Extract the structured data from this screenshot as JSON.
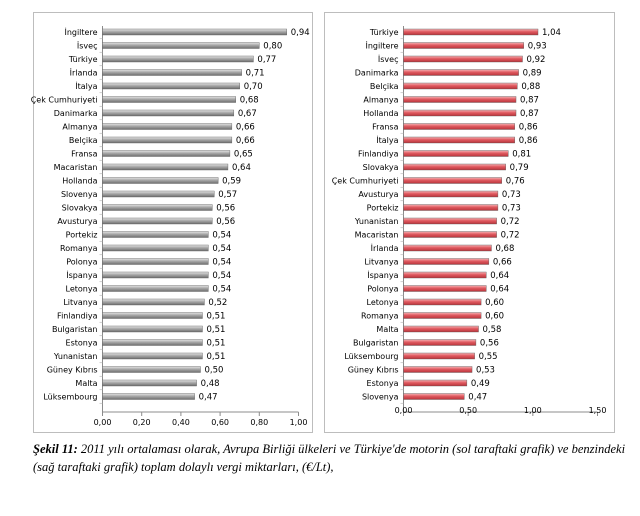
{
  "caption": {
    "prefix": "Şekil 11:",
    "text": "2011 yılı ortalaması olarak, Avrupa Birliği ülkeleri ve Türkiye'de motorin (sol taraftaki grafik) ve benzindeki (sağ taraftaki grafik) toplam dolaylı vergi miktarları, (€/Lt),"
  },
  "chart_data": [
    {
      "type": "bar",
      "orientation": "horizontal",
      "title": "",
      "xlabel": "",
      "ylabel": "",
      "xlim": [
        0,
        1.0
      ],
      "ticks": [
        "0,00",
        "0,20",
        "0,40",
        "0,60",
        "0,80",
        "1,00"
      ],
      "grid": false,
      "bar_color": "#9a9a9a",
      "categories": [
        "İngiltere",
        "İsveç",
        "Türkiye",
        "İrlanda",
        "İtalya",
        "Çek Cumhuriyeti",
        "Danimarka",
        "Almanya",
        "Belçika",
        "Fransa",
        "Macaristan",
        "Hollanda",
        "Slovenya",
        "Slovakya",
        "Avusturya",
        "Portekiz",
        "Romanya",
        "Polonya",
        "İspanya",
        "Letonya",
        "Litvanya",
        "Finlandiya",
        "Bulgaristan",
        "Estonya",
        "Yunanistan",
        "Güney Kıbrıs",
        "Malta",
        "Lüksembourg"
      ],
      "values": [
        0.94,
        0.8,
        0.77,
        0.71,
        0.7,
        0.68,
        0.67,
        0.66,
        0.66,
        0.65,
        0.64,
        0.59,
        0.57,
        0.56,
        0.56,
        0.54,
        0.54,
        0.54,
        0.54,
        0.54,
        0.52,
        0.51,
        0.51,
        0.51,
        0.51,
        0.5,
        0.48,
        0.47
      ],
      "labels": [
        "0,94",
        "0,80",
        "0,77",
        "0,71",
        "0,70",
        "0,68",
        "0,67",
        "0,66",
        "0,66",
        "0,65",
        "0,64",
        "0,59",
        "0,57",
        "0,56",
        "0,56",
        "0,54",
        "0,54",
        "0,54",
        "0,54",
        "0,54",
        "0,52",
        "0,51",
        "0,51",
        "0,51",
        "0,51",
        "0,50",
        "0,48",
        "0,47"
      ]
    },
    {
      "type": "bar",
      "orientation": "horizontal",
      "title": "",
      "xlabel": "",
      "ylabel": "",
      "xlim": [
        0,
        1.5
      ],
      "ticks": [
        "0,00",
        "0,50",
        "1,00",
        "1,50"
      ],
      "grid": false,
      "bar_color": "#e05a60",
      "categories": [
        "Türkiye",
        "İngiltere",
        "İsveç",
        "Danimarka",
        "Belçika",
        "Almanya",
        "Hollanda",
        "Fransa",
        "İtalya",
        "Finlandiya",
        "Slovakya",
        "Çek Cumhuriyeti",
        "Avusturya",
        "Portekiz",
        "Yunanistan",
        "Macaristan",
        "İrlanda",
        "Litvanya",
        "İspanya",
        "Polonya",
        "Letonya",
        "Romanya",
        "Malta",
        "Bulgaristan",
        "Lüksembourg",
        "Güney Kıbrıs",
        "Estonya",
        "Slovenya"
      ],
      "values": [
        1.04,
        0.93,
        0.92,
        0.89,
        0.88,
        0.87,
        0.87,
        0.86,
        0.86,
        0.81,
        0.79,
        0.76,
        0.73,
        0.73,
        0.72,
        0.72,
        0.68,
        0.66,
        0.64,
        0.64,
        0.6,
        0.6,
        0.58,
        0.56,
        0.55,
        0.53,
        0.49,
        0.47
      ],
      "labels": [
        "1,04",
        "0,93",
        "0,92",
        "0,89",
        "0,88",
        "0,87",
        "0,87",
        "0,86",
        "0,86",
        "0,81",
        "0,79",
        "0,76",
        "0,73",
        "0,73",
        "0,72",
        "0,72",
        "0,68",
        "0,66",
        "0,64",
        "0,64",
        "0,60",
        "0,60",
        "0,58",
        "0,56",
        "0,55",
        "0,53",
        "0,49",
        "0,47"
      ]
    }
  ]
}
